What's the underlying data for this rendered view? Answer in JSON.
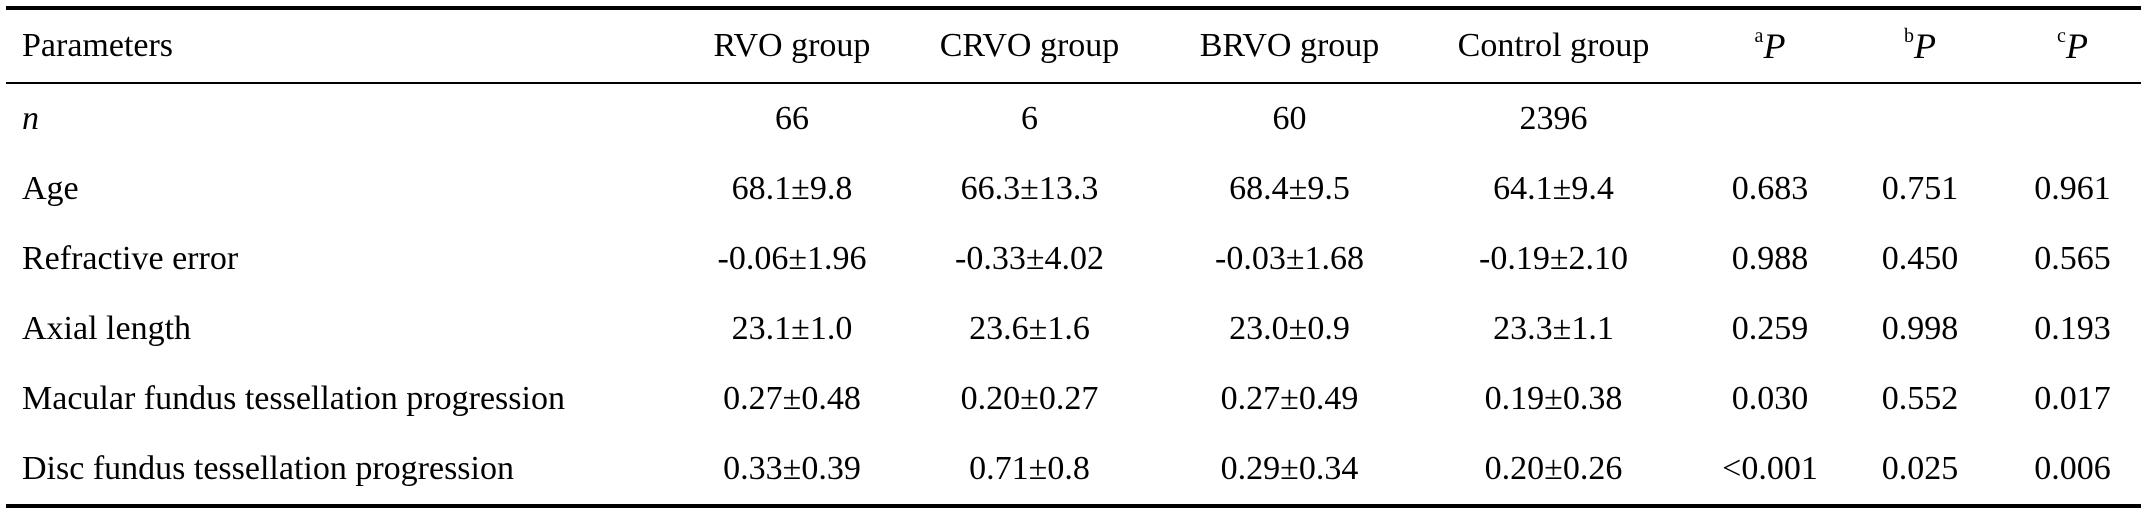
{
  "table": {
    "headers": {
      "parameters": "Parameters",
      "rvo": "RVO group",
      "crvo": "CRVO group",
      "brvo": "BRVO group",
      "control": "Control group",
      "pa_sup": "a",
      "pa_main": "P",
      "pb_sup": "b",
      "pb_main": "P",
      "pc_sup": "c",
      "pc_main": "P"
    },
    "rows": [
      {
        "param": "n",
        "rvo": "66",
        "crvo": "6",
        "brvo": "60",
        "control": "2396",
        "pa": "",
        "pb": "",
        "pc": ""
      },
      {
        "param": "Age",
        "rvo": "68.1±9.8",
        "crvo": "66.3±13.3",
        "brvo": "68.4±9.5",
        "control": "64.1±9.4",
        "pa": "0.683",
        "pb": "0.751",
        "pc": "0.961"
      },
      {
        "param": "Refractive error",
        "rvo": "-0.06±1.96",
        "crvo": "-0.33±4.02",
        "brvo": "-0.03±1.68",
        "control": "-0.19±2.10",
        "pa": "0.988",
        "pb": "0.450",
        "pc": "0.565"
      },
      {
        "param": "Axial length",
        "rvo": "23.1±1.0",
        "crvo": "23.6±1.6",
        "brvo": "23.0±0.9",
        "control": "23.3±1.1",
        "pa": "0.259",
        "pb": "0.998",
        "pc": "0.193"
      },
      {
        "param": "Macular fundus tessellation progression",
        "rvo": "0.27±0.48",
        "crvo": "0.20±0.27",
        "brvo": "0.27±0.49",
        "control": "0.19±0.38",
        "pa": "0.030",
        "pb": "0.552",
        "pc": "0.017"
      },
      {
        "param": "Disc fundus tessellation progression",
        "rvo": "0.33±0.39",
        "crvo": "0.71±0.8",
        "brvo": "0.29±0.34",
        "control": "0.20±0.26",
        "pa": "<0.001",
        "pb": "0.025",
        "pc": "0.006"
      }
    ]
  }
}
